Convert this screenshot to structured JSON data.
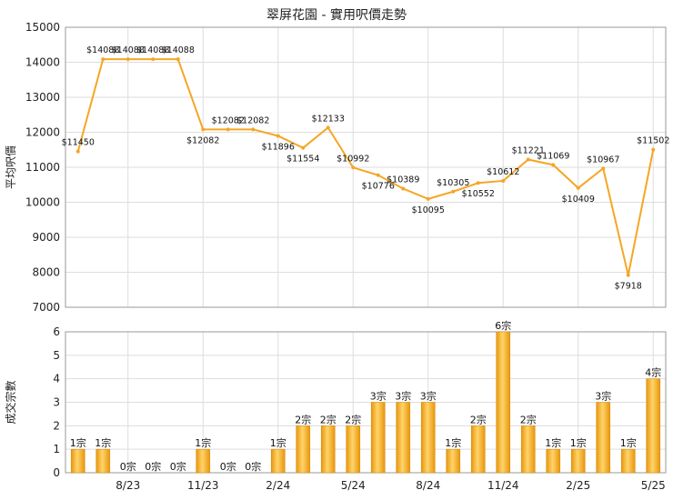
{
  "chart_data": [
    {
      "type": "line",
      "title": "翠屏花園 - 實用呎價走勢",
      "ylabel": "平均呎價",
      "ylim": [
        7000,
        15000
      ],
      "yticks": [
        7000,
        8000,
        9000,
        10000,
        11000,
        12000,
        13000,
        14000,
        15000
      ],
      "xtick_labels": [
        {
          "index": 2,
          "label": "8/23"
        },
        {
          "index": 5,
          "label": "11/23"
        },
        {
          "index": 8,
          "label": "2/24"
        },
        {
          "index": 11,
          "label": "5/24"
        },
        {
          "index": 14,
          "label": "8/24"
        },
        {
          "index": 17,
          "label": "11/24"
        },
        {
          "index": 20,
          "label": "2/25"
        },
        {
          "index": 23,
          "label": "5/25"
        }
      ],
      "grid": true,
      "line_color": "#f5a623",
      "values": [
        11450,
        14088,
        14088,
        14088,
        14088,
        12082,
        12082,
        12082,
        11896,
        11554,
        12133,
        10992,
        10776,
        10389,
        10095,
        10305,
        10552,
        10612,
        11221,
        11069,
        10409,
        10967,
        7918,
        11502
      ],
      "data_labels": [
        "$11450",
        "$14088",
        "$14088",
        "$14088",
        "$14088",
        "$12082",
        "$12082",
        "$12082",
        "$11896",
        "$11554",
        "$12133",
        "$10992",
        "$10776",
        "$10389",
        "$10095",
        "$10305",
        "$10552",
        "$10612",
        "$11221",
        "$11069",
        "$10409",
        "$10967",
        "$7918",
        "$11502"
      ]
    },
    {
      "type": "bar",
      "ylabel": "成交宗數",
      "ylim": [
        0,
        6
      ],
      "yticks": [
        0,
        1,
        2,
        3,
        4,
        5,
        6
      ],
      "grid": true,
      "bar_color": "#f0a818",
      "values": [
        1,
        1,
        0,
        0,
        0,
        1,
        0,
        0,
        1,
        2,
        2,
        2,
        3,
        3,
        3,
        1,
        2,
        6,
        2,
        1,
        1,
        3,
        1,
        4
      ],
      "bar_labels": [
        "1宗",
        "1宗",
        "0宗",
        "0宗",
        "0宗",
        "1宗",
        "0宗",
        "0宗",
        "1宗",
        "2宗",
        "2宗",
        "2宗",
        "3宗",
        "3宗",
        "3宗",
        "1宗",
        "2宗",
        "6宗",
        "2宗",
        "1宗",
        "1宗",
        "3宗",
        "1宗",
        "4宗"
      ]
    }
  ]
}
